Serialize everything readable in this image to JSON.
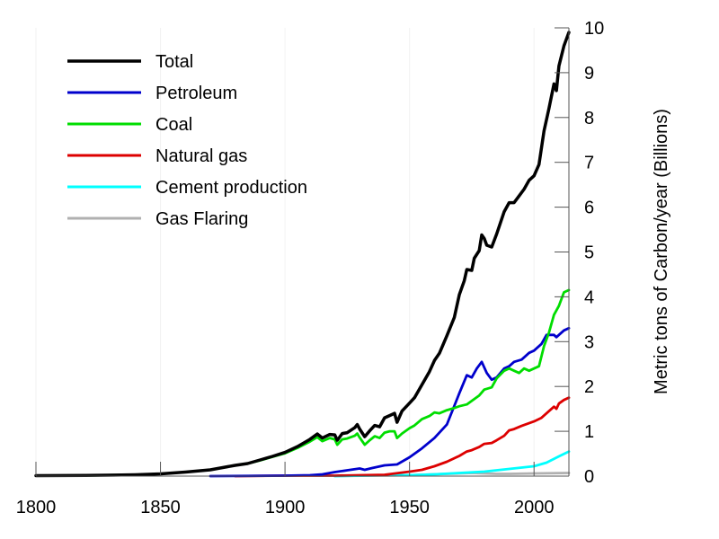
{
  "chart_data": {
    "type": "line",
    "ylabel": "Metric tons of Carbon/year (Billions)",
    "xlim": [
      1800,
      2014
    ],
    "ylim": [
      0,
      10
    ],
    "x_ticks": [
      "1800",
      "1850",
      "1900",
      "1950",
      "2000"
    ],
    "y_ticks": [
      "0",
      "1",
      "2",
      "3",
      "4",
      "5",
      "6",
      "7",
      "8",
      "9",
      "10"
    ],
    "y_axis_position": "right",
    "grid": false,
    "legend_position": "top-left",
    "series": [
      {
        "name": "Total",
        "color": "#000000",
        "points": [
          [
            1800,
            0.01
          ],
          [
            1820,
            0.015
          ],
          [
            1840,
            0.03
          ],
          [
            1850,
            0.05
          ],
          [
            1860,
            0.09
          ],
          [
            1870,
            0.14
          ],
          [
            1875,
            0.19
          ],
          [
            1880,
            0.24
          ],
          [
            1885,
            0.28
          ],
          [
            1890,
            0.36
          ],
          [
            1895,
            0.44
          ],
          [
            1900,
            0.53
          ],
          [
            1905,
            0.66
          ],
          [
            1910,
            0.82
          ],
          [
            1913,
            0.94
          ],
          [
            1915,
            0.85
          ],
          [
            1918,
            0.93
          ],
          [
            1920,
            0.92
          ],
          [
            1921,
            0.8
          ],
          [
            1923,
            0.95
          ],
          [
            1925,
            0.97
          ],
          [
            1928,
            1.08
          ],
          [
            1929,
            1.15
          ],
          [
            1930,
            1.05
          ],
          [
            1932,
            0.88
          ],
          [
            1934,
            1.01
          ],
          [
            1936,
            1.13
          ],
          [
            1938,
            1.1
          ],
          [
            1940,
            1.3
          ],
          [
            1942,
            1.35
          ],
          [
            1944,
            1.4
          ],
          [
            1945,
            1.2
          ],
          [
            1947,
            1.45
          ],
          [
            1950,
            1.63
          ],
          [
            1952,
            1.75
          ],
          [
            1955,
            2.04
          ],
          [
            1958,
            2.33
          ],
          [
            1960,
            2.58
          ],
          [
            1962,
            2.74
          ],
          [
            1965,
            3.13
          ],
          [
            1968,
            3.54
          ],
          [
            1970,
            4.05
          ],
          [
            1972,
            4.36
          ],
          [
            1973,
            4.61
          ],
          [
            1975,
            4.59
          ],
          [
            1976,
            4.86
          ],
          [
            1978,
            5.03
          ],
          [
            1979,
            5.38
          ],
          [
            1980,
            5.3
          ],
          [
            1981,
            5.15
          ],
          [
            1983,
            5.11
          ],
          [
            1985,
            5.4
          ],
          [
            1988,
            5.9
          ],
          [
            1990,
            6.1
          ],
          [
            1992,
            6.1
          ],
          [
            1994,
            6.25
          ],
          [
            1996,
            6.4
          ],
          [
            1998,
            6.6
          ],
          [
            2000,
            6.7
          ],
          [
            2002,
            6.95
          ],
          [
            2004,
            7.7
          ],
          [
            2006,
            8.2
          ],
          [
            2008,
            8.75
          ],
          [
            2009,
            8.6
          ],
          [
            2010,
            9.15
          ],
          [
            2012,
            9.6
          ],
          [
            2014,
            9.9
          ]
        ]
      },
      {
        "name": "Petroleum",
        "color": "#0000cc",
        "points": [
          [
            1870,
            0.0
          ],
          [
            1900,
            0.01
          ],
          [
            1910,
            0.02
          ],
          [
            1915,
            0.04
          ],
          [
            1920,
            0.09
          ],
          [
            1925,
            0.13
          ],
          [
            1930,
            0.17
          ],
          [
            1932,
            0.14
          ],
          [
            1935,
            0.18
          ],
          [
            1940,
            0.24
          ],
          [
            1945,
            0.26
          ],
          [
            1950,
            0.42
          ],
          [
            1955,
            0.62
          ],
          [
            1960,
            0.85
          ],
          [
            1965,
            1.15
          ],
          [
            1970,
            1.85
          ],
          [
            1973,
            2.25
          ],
          [
            1975,
            2.2
          ],
          [
            1977,
            2.4
          ],
          [
            1979,
            2.55
          ],
          [
            1981,
            2.3
          ],
          [
            1983,
            2.15
          ],
          [
            1985,
            2.2
          ],
          [
            1988,
            2.4
          ],
          [
            1990,
            2.45
          ],
          [
            1992,
            2.55
          ],
          [
            1995,
            2.6
          ],
          [
            1998,
            2.75
          ],
          [
            2000,
            2.8
          ],
          [
            2003,
            2.95
          ],
          [
            2005,
            3.15
          ],
          [
            2008,
            3.15
          ],
          [
            2009,
            3.1
          ],
          [
            2010,
            3.15
          ],
          [
            2012,
            3.25
          ],
          [
            2014,
            3.3
          ]
        ]
      },
      {
        "name": "Coal",
        "color": "#00dd00",
        "points": [
          [
            1800,
            0.01
          ],
          [
            1820,
            0.015
          ],
          [
            1840,
            0.03
          ],
          [
            1850,
            0.05
          ],
          [
            1860,
            0.09
          ],
          [
            1870,
            0.14
          ],
          [
            1875,
            0.19
          ],
          [
            1880,
            0.24
          ],
          [
            1885,
            0.28
          ],
          [
            1890,
            0.35
          ],
          [
            1895,
            0.43
          ],
          [
            1900,
            0.51
          ],
          [
            1905,
            0.63
          ],
          [
            1910,
            0.77
          ],
          [
            1913,
            0.87
          ],
          [
            1915,
            0.78
          ],
          [
            1918,
            0.85
          ],
          [
            1920,
            0.82
          ],
          [
            1921,
            0.7
          ],
          [
            1923,
            0.82
          ],
          [
            1925,
            0.84
          ],
          [
            1928,
            0.9
          ],
          [
            1929,
            0.95
          ],
          [
            1930,
            0.86
          ],
          [
            1932,
            0.7
          ],
          [
            1934,
            0.8
          ],
          [
            1936,
            0.89
          ],
          [
            1938,
            0.85
          ],
          [
            1940,
            0.97
          ],
          [
            1942,
            1.0
          ],
          [
            1944,
            1.0
          ],
          [
            1945,
            0.85
          ],
          [
            1947,
            0.95
          ],
          [
            1950,
            1.07
          ],
          [
            1952,
            1.13
          ],
          [
            1955,
            1.27
          ],
          [
            1958,
            1.34
          ],
          [
            1960,
            1.42
          ],
          [
            1962,
            1.4
          ],
          [
            1965,
            1.47
          ],
          [
            1968,
            1.52
          ],
          [
            1970,
            1.56
          ],
          [
            1973,
            1.6
          ],
          [
            1975,
            1.68
          ],
          [
            1978,
            1.8
          ],
          [
            1980,
            1.93
          ],
          [
            1983,
            1.98
          ],
          [
            1985,
            2.18
          ],
          [
            1988,
            2.35
          ],
          [
            1990,
            2.4
          ],
          [
            1992,
            2.35
          ],
          [
            1994,
            2.3
          ],
          [
            1996,
            2.4
          ],
          [
            1998,
            2.35
          ],
          [
            2000,
            2.4
          ],
          [
            2002,
            2.45
          ],
          [
            2004,
            2.9
          ],
          [
            2006,
            3.2
          ],
          [
            2008,
            3.6
          ],
          [
            2010,
            3.8
          ],
          [
            2012,
            4.1
          ],
          [
            2014,
            4.15
          ]
        ]
      },
      {
        "name": "Natural gas",
        "color": "#dd0000",
        "points": [
          [
            1880,
            0.0
          ],
          [
            1900,
            0.01
          ],
          [
            1920,
            0.01
          ],
          [
            1930,
            0.02
          ],
          [
            1940,
            0.03
          ],
          [
            1950,
            0.1
          ],
          [
            1955,
            0.14
          ],
          [
            1960,
            0.22
          ],
          [
            1965,
            0.32
          ],
          [
            1970,
            0.45
          ],
          [
            1973,
            0.55
          ],
          [
            1975,
            0.58
          ],
          [
            1978,
            0.65
          ],
          [
            1980,
            0.72
          ],
          [
            1983,
            0.74
          ],
          [
            1985,
            0.8
          ],
          [
            1988,
            0.9
          ],
          [
            1990,
            1.02
          ],
          [
            1992,
            1.05
          ],
          [
            1995,
            1.12
          ],
          [
            1998,
            1.18
          ],
          [
            2000,
            1.22
          ],
          [
            2003,
            1.3
          ],
          [
            2005,
            1.4
          ],
          [
            2008,
            1.55
          ],
          [
            2009,
            1.5
          ],
          [
            2010,
            1.62
          ],
          [
            2012,
            1.7
          ],
          [
            2014,
            1.75
          ]
        ]
      },
      {
        "name": "Cement production",
        "color": "#00ffff",
        "points": [
          [
            1920,
            0.0
          ],
          [
            1930,
            0.01
          ],
          [
            1940,
            0.02
          ],
          [
            1950,
            0.02
          ],
          [
            1960,
            0.04
          ],
          [
            1970,
            0.07
          ],
          [
            1980,
            0.1
          ],
          [
            1990,
            0.16
          ],
          [
            2000,
            0.22
          ],
          [
            2005,
            0.3
          ],
          [
            2010,
            0.44
          ],
          [
            2014,
            0.55
          ]
        ]
      },
      {
        "name": "Gas Flaring",
        "color": "#b0b0b0",
        "points": [
          [
            1920,
            0.0
          ],
          [
            1950,
            0.02
          ],
          [
            1960,
            0.04
          ],
          [
            1970,
            0.06
          ],
          [
            1975,
            0.07
          ],
          [
            1980,
            0.06
          ],
          [
            1985,
            0.05
          ],
          [
            1990,
            0.05
          ],
          [
            2000,
            0.06
          ],
          [
            2014,
            0.07
          ]
        ]
      }
    ]
  }
}
